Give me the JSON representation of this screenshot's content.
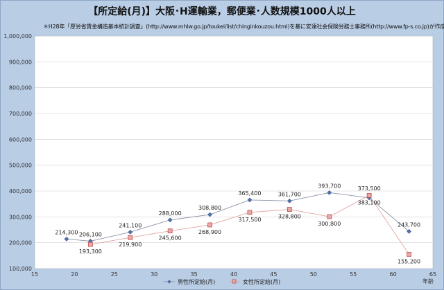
{
  "chart_data": {
    "type": "line",
    "title": "【所定給(月)】大阪･H運輸業，郵便業･人数規模1000人以上",
    "subtitle": "＊H28年「厚労省賃金構造基本統計調査」(http://www.mhlw.go.jp/toukei/list/chinginkouzou.html)を基に安達社会保険労務士事務所(http://www.fp-s.co.jp)が作成",
    "xlabel": "年齢",
    "ylabel": "",
    "xlim": [
      15,
      65
    ],
    "ylim": [
      100000,
      1000000
    ],
    "x_ticks": [
      15,
      20,
      25,
      30,
      35,
      40,
      45,
      50,
      55,
      60,
      65
    ],
    "y_ticks": [
      100000,
      200000,
      300000,
      400000,
      500000,
      600000,
      700000,
      800000,
      900000,
      1000000
    ],
    "y_tick_labels": [
      "100,000",
      "200,000",
      "300,000",
      "400,000",
      "500,000",
      "600,000",
      "700,000",
      "800,000",
      "900,000",
      "1,000,000"
    ],
    "grid": "horizontal",
    "legend_position": "bottom",
    "series": [
      {
        "name": "男性所定給(月)",
        "color": "#4f6fa8",
        "marker": "diamond",
        "x": [
          19,
          22,
          27,
          32,
          37,
          42,
          47,
          52,
          57,
          62
        ],
        "values": [
          214300,
          206100,
          241100,
          288000,
          308800,
          365400,
          361700,
          393700,
          373500,
          243700
        ],
        "labels": [
          "214,300",
          "206,100",
          "241,100",
          "288,000",
          "308,800",
          "365,400",
          "361,700",
          "393,700",
          "373,500",
          "243,700"
        ]
      },
      {
        "name": "女性所定給(月)",
        "color": "#c0504d",
        "marker": "square",
        "x": [
          22,
          27,
          32,
          37,
          42,
          47,
          52,
          57,
          62
        ],
        "values": [
          193300,
          219900,
          245600,
          268900,
          317500,
          328800,
          300800,
          383100,
          155200
        ],
        "labels": [
          "193,300",
          "219,900",
          "245,600",
          "268,900",
          "317,500",
          "328,800",
          "300,800",
          "383,100",
          "155,200"
        ]
      }
    ]
  }
}
